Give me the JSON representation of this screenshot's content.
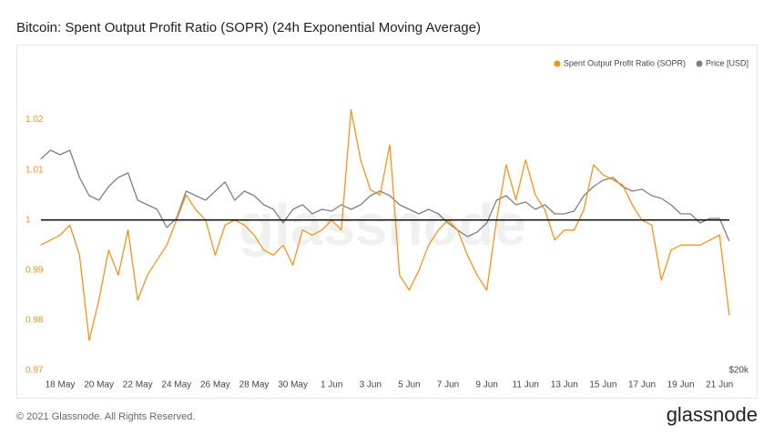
{
  "chart_data": {
    "type": "line",
    "title": "Bitcoin: Spent Output Profit Ratio (SOPR) (24h Exponential Moving Average)",
    "watermark": "glassnode",
    "categories": [
      null,
      null,
      "18 May",
      null,
      null,
      null,
      "20 May",
      null,
      null,
      null,
      "22 May",
      null,
      null,
      null,
      "24 May",
      null,
      null,
      null,
      "26 May",
      null,
      null,
      null,
      "28 May",
      null,
      null,
      null,
      "30 May",
      null,
      null,
      null,
      "1 Jun",
      null,
      null,
      null,
      "3 Jun",
      null,
      null,
      null,
      "5 Jun",
      null,
      null,
      null,
      "7 Jun",
      null,
      null,
      null,
      "9 Jun",
      null,
      null,
      null,
      "11 Jun",
      null,
      null,
      null,
      "13 Jun",
      null,
      null,
      null,
      "15 Jun",
      null,
      null,
      null,
      "17 Jun",
      null,
      null,
      null,
      "19 Jun",
      null,
      null,
      null,
      "21 Jun",
      null
    ],
    "series": [
      {
        "name": "Spent Output Profit Ratio (SOPR)",
        "color": "#f7931a",
        "axis": "y",
        "values": [
          0.995,
          0.996,
          0.997,
          0.999,
          0.993,
          0.976,
          0.984,
          0.994,
          0.989,
          0.998,
          0.984,
          0.989,
          0.992,
          0.995,
          1.0,
          1.005,
          1.002,
          1.0,
          0.993,
          0.999,
          1.0,
          0.999,
          0.997,
          0.994,
          0.993,
          0.995,
          0.991,
          0.998,
          0.997,
          0.998,
          1.0,
          0.998,
          1.022,
          1.012,
          1.006,
          1.005,
          1.015,
          0.989,
          0.986,
          0.99,
          0.995,
          0.998,
          1.0,
          0.998,
          0.993,
          0.989,
          0.986,
          1.0,
          1.011,
          1.004,
          1.012,
          1.005,
          1.002,
          0.996,
          0.998,
          0.998,
          1.002,
          1.011,
          1.009,
          1.008,
          1.007,
          1.003,
          1.0,
          0.999,
          0.988,
          0.994,
          0.995,
          0.995,
          0.995,
          0.996,
          0.997,
          0.981
        ]
      },
      {
        "name": "Price [USD]",
        "color": "#808080",
        "axis": "y2",
        "values": [
          42730,
          43710,
          43220,
          43710,
          40770,
          38810,
          38320,
          39790,
          40770,
          41260,
          38320,
          37830,
          37340,
          35380,
          36360,
          39300,
          38810,
          38320,
          39300,
          40280,
          38320,
          39300,
          38810,
          37830,
          37340,
          35870,
          37340,
          37830,
          36850,
          37340,
          37150,
          37830,
          37340,
          37830,
          38810,
          39300,
          38810,
          37830,
          37340,
          36850,
          37340,
          36850,
          35870,
          35100,
          34400,
          34890,
          35870,
          38320,
          38810,
          37830,
          38130,
          37340,
          37830,
          36850,
          36850,
          37150,
          38810,
          39790,
          40480,
          40770,
          39790,
          39300,
          39500,
          38810,
          38520,
          37830,
          36850,
          36850,
          35870,
          36360,
          36360,
          33910
        ]
      }
    ],
    "ylim": [
      0.97,
      1.033
    ],
    "yticks": [
      0.97,
      0.98,
      0.99,
      1,
      1.01,
      1.02
    ],
    "y2lim": [
      20000,
      54000
    ],
    "y2ticks": [
      {
        "value": 20000,
        "label": "$20k"
      }
    ],
    "reference_line": 1,
    "grid": false,
    "legend": "top-right"
  },
  "footer": {
    "copyright": "© 2021 Glassnode. All Rights Reserved.",
    "logo": "glassnode"
  }
}
